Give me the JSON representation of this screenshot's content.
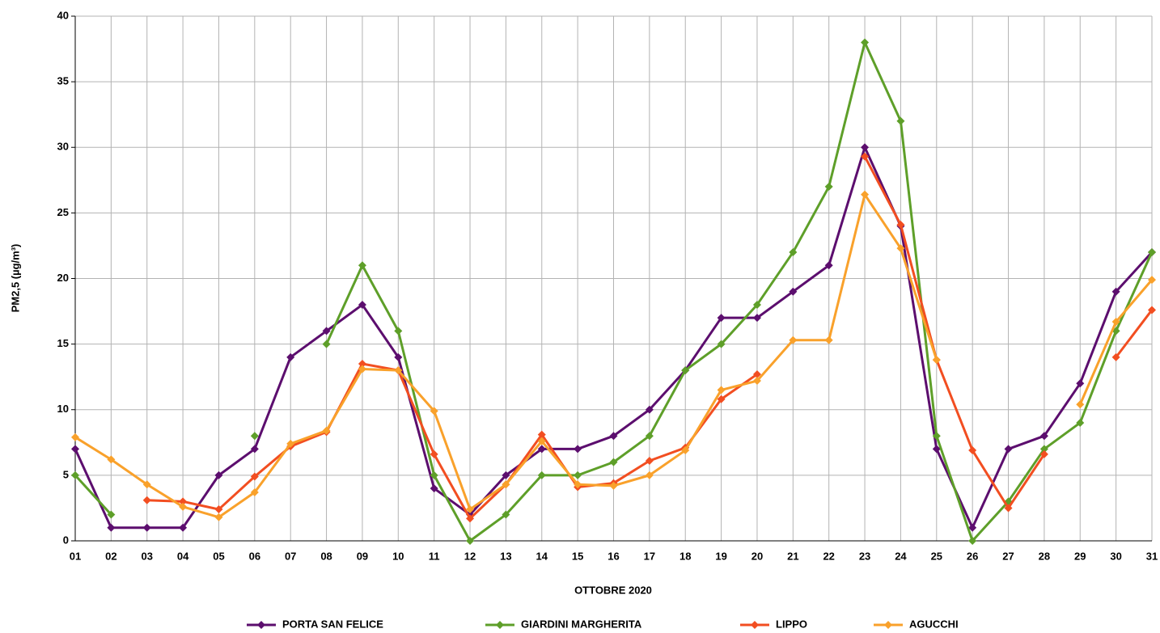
{
  "chart_data": {
    "type": "line",
    "y_label": "PM2,5 (µg/m³)",
    "x_label": "OTTOBRE 2020",
    "categories": [
      "01",
      "02",
      "03",
      "04",
      "05",
      "06",
      "07",
      "08",
      "09",
      "10",
      "11",
      "12",
      "13",
      "14",
      "15",
      "16",
      "17",
      "18",
      "19",
      "20",
      "21",
      "22",
      "23",
      "24",
      "25",
      "26",
      "27",
      "28",
      "29",
      "30",
      "31"
    ],
    "ylim": [
      0,
      40
    ],
    "yticks": [
      0,
      5,
      10,
      15,
      20,
      25,
      30,
      35,
      40
    ],
    "grid": true,
    "legend": "bottom",
    "series": [
      {
        "name": "PORTA SAN FELICE",
        "color": "#5c0e6e",
        "values": [
          7,
          1,
          1,
          1,
          5,
          7,
          14,
          16,
          18,
          14,
          4,
          2,
          5,
          7,
          7,
          8,
          10,
          13,
          17,
          17,
          19,
          21,
          30,
          24,
          7,
          1,
          7,
          8,
          12,
          19,
          22
        ]
      },
      {
        "name": "GIARDINI MARGHERITA",
        "color": "#5e9f29",
        "values": [
          5,
          2,
          null,
          null,
          null,
          8,
          null,
          15,
          21,
          16,
          5,
          0,
          2,
          5,
          5,
          6,
          8,
          13,
          15,
          18,
          22,
          27,
          38,
          32,
          8,
          0,
          3,
          7,
          9,
          16,
          22
        ]
      },
      {
        "name": "LIPPO",
        "color": "#f24e21",
        "values": [
          null,
          null,
          3.1,
          3.0,
          2.4,
          4.9,
          7.2,
          8.3,
          13.5,
          13.0,
          6.6,
          1.7,
          4.3,
          8.1,
          4.1,
          4.4,
          6.1,
          7.1,
          10.8,
          12.7,
          null,
          null,
          29.3,
          24.1,
          13.8,
          6.9,
          2.5,
          6.6,
          null,
          14.0,
          17.6
        ]
      },
      {
        "name": "AGUCCHI",
        "color": "#f9a12b",
        "values": [
          7.9,
          6.2,
          4.3,
          2.6,
          1.8,
          3.7,
          7.4,
          8.4,
          13.1,
          13.0,
          9.9,
          2.4,
          4.3,
          7.6,
          4.3,
          4.2,
          5.0,
          6.9,
          11.5,
          12.2,
          15.3,
          15.3,
          26.4,
          22.3,
          13.8,
          null,
          null,
          null,
          10.4,
          16.7,
          19.9
        ]
      }
    ]
  }
}
